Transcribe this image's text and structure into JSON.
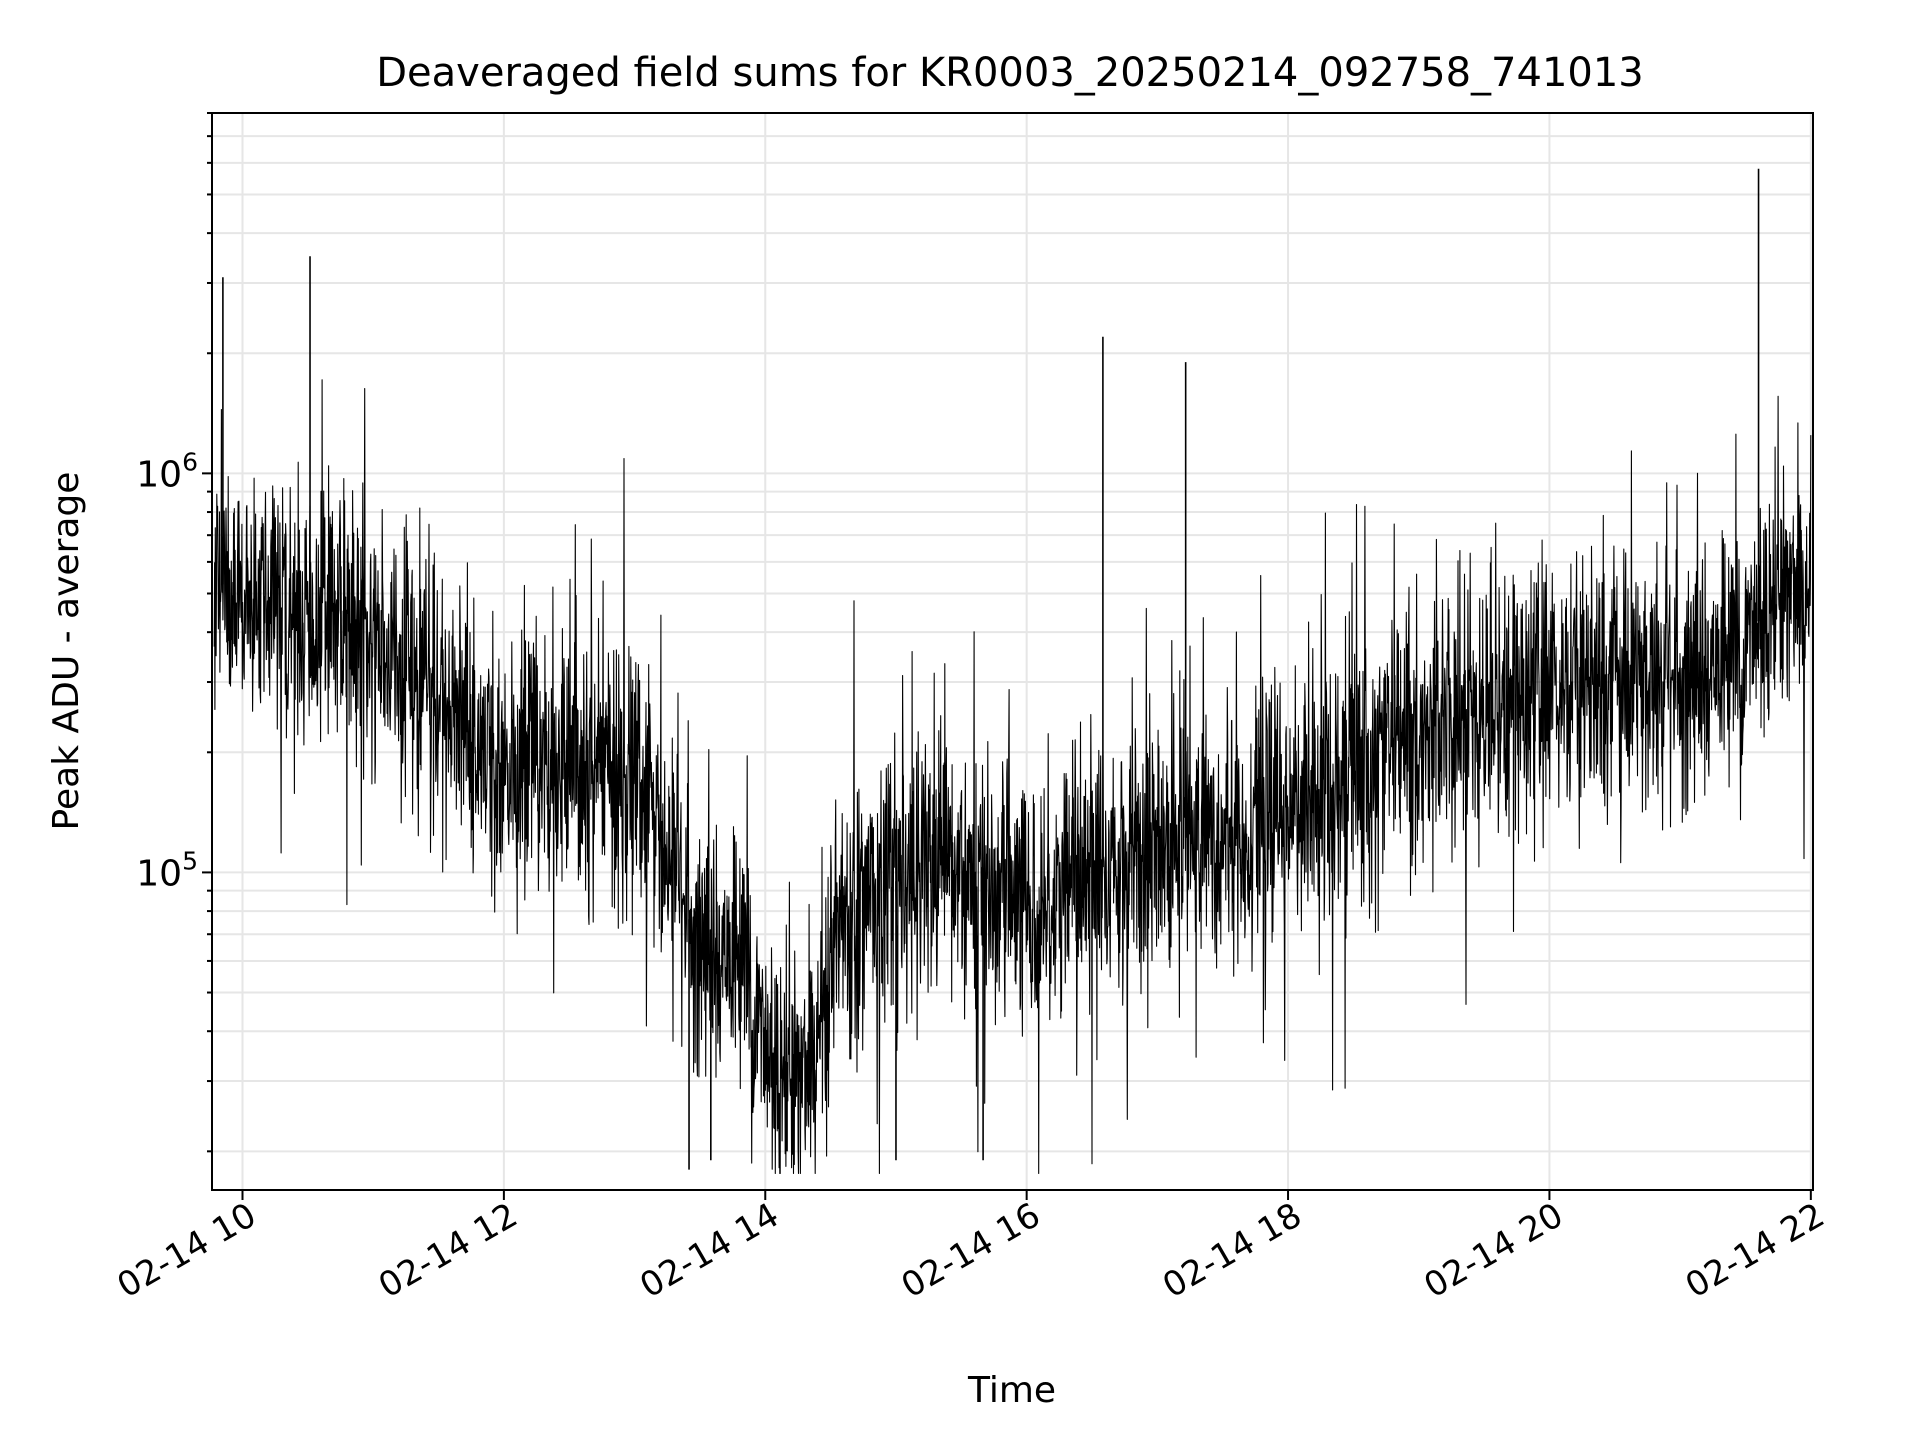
{
  "chart_data": {
    "type": "line",
    "title": "Deaveraged field sums for KR0003_20250214_092758_741013",
    "xlabel": "Time",
    "ylabel": "Peak ADU - average",
    "x_axis": {
      "kind": "datetime",
      "range": [
        "02-14 09:46",
        "02-14 22:01"
      ],
      "ticks": [
        {
          "value": "02-14 10:00",
          "label": "02-14 10"
        },
        {
          "value": "02-14 12:00",
          "label": "02-14 12"
        },
        {
          "value": "02-14 14:00",
          "label": "02-14 14"
        },
        {
          "value": "02-14 16:00",
          "label": "02-14 16"
        },
        {
          "value": "02-14 18:00",
          "label": "02-14 18"
        },
        {
          "value": "02-14 20:00",
          "label": "02-14 20"
        },
        {
          "value": "02-14 22:00",
          "label": "02-14 22"
        }
      ]
    },
    "y_axis": {
      "scale": "log",
      "range": [
        16000,
        8000000
      ],
      "major_ticks": [
        {
          "value": 100000,
          "base": "10",
          "exp": "5"
        },
        {
          "value": 1000000,
          "base": "10",
          "exp": "6"
        }
      ]
    },
    "grid": true,
    "line_color": "#000000",
    "grid_color": "#e6e6e6",
    "series": [
      {
        "x": [
          "02-14 09:47",
          "02-14 10:00",
          "02-14 10:30",
          "02-14 11:00",
          "02-14 11:30",
          "02-14 12:00",
          "02-14 12:30",
          "02-14 13:00",
          "02-14 13:30",
          "02-14 13:50",
          "02-14 14:00",
          "02-14 14:20",
          "02-14 14:35",
          "02-14 15:00",
          "02-14 15:30",
          "02-14 16:00",
          "02-14 16:30",
          "02-14 17:00",
          "02-14 17:30",
          "02-14 18:00",
          "02-14 18:30",
          "02-14 19:00",
          "02-14 19:30",
          "02-14 20:00",
          "02-14 20:30",
          "02-14 21:00",
          "02-14 21:30",
          "02-14 21:45",
          "02-14 22:00"
        ],
        "y": [
          550000,
          480000,
          450000,
          400000,
          280000,
          170000,
          200000,
          170000,
          65000,
          60000,
          35000,
          32000,
          80000,
          95000,
          100000,
          80000,
          100000,
          120000,
          125000,
          140000,
          180000,
          230000,
          260000,
          300000,
          310000,
          300000,
          360000,
          550000,
          500000
        ]
      }
    ],
    "spikes": [
      {
        "x": "02-14 09:51",
        "y": 3100000
      },
      {
        "x": "02-14 10:31",
        "y": 3500000
      },
      {
        "x": "02-14 16:35",
        "y": 2200000
      },
      {
        "x": "02-14 17:13",
        "y": 1900000
      },
      {
        "x": "02-14 21:36",
        "y": 5800000
      }
    ],
    "dips": [
      {
        "x": "02-14 13:25",
        "y": 18000
      },
      {
        "x": "02-14 13:35",
        "y": 19000
      },
      {
        "x": "02-14 14:10",
        "y": 20000
      },
      {
        "x": "02-14 15:00",
        "y": 19000
      },
      {
        "x": "02-14 15:40",
        "y": 19000
      }
    ]
  }
}
